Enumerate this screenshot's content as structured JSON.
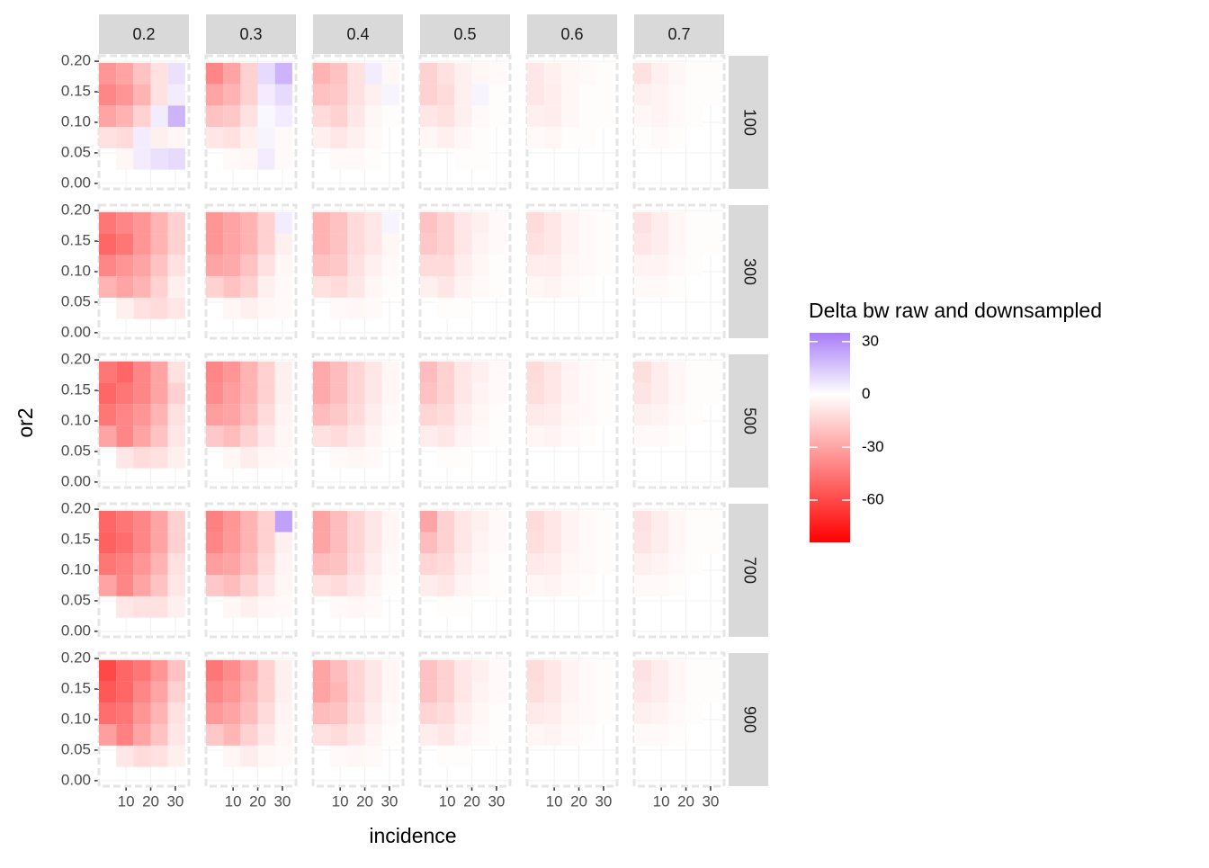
{
  "chart_data": {
    "type": "heatmap",
    "x_label": "incidence",
    "y_label": "or2",
    "legend_title": "Delta bw raw and downsampled",
    "columns": [
      "0.2",
      "0.3",
      "0.4",
      "0.5",
      "0.6",
      "0.7"
    ],
    "rows": [
      "100",
      "300",
      "500",
      "700",
      "900"
    ],
    "xlim": [
      -1,
      35.5
    ],
    "ylim": [
      -0.009,
      0.209
    ],
    "xticks": [
      10,
      20,
      30
    ],
    "yticks": [
      {
        "value": 0,
        "label": "0.00"
      },
      {
        "value": 0.05,
        "label": "0.05"
      },
      {
        "value": 0.1,
        "label": "0.10"
      },
      {
        "value": 0.15,
        "label": "0.15"
      },
      {
        "value": 0.2,
        "label": "0.20"
      }
    ],
    "x": [
      2.5,
      9.5,
      16.5,
      23.5,
      30.5
    ],
    "y": [
      0.04,
      0.075,
      0.11,
      0.145,
      0.18
    ],
    "zlim": [
      -84,
      35
    ],
    "low_color": "#ff0000",
    "mid_color": "#ffffff",
    "high_color": "#a77cf7",
    "legend_ticks": [
      30,
      0,
      -30,
      -60
    ],
    "panels": [
      [
        [
          [
            null,
            -3,
            5,
            8,
            10
          ],
          [
            -10,
            -12,
            5,
            -5,
            -3
          ],
          [
            -30,
            -25,
            -15,
            5,
            20
          ],
          [
            -40,
            -35,
            -25,
            -10,
            5
          ],
          [
            -35,
            -30,
            -20,
            -10,
            8
          ]
        ],
        [
          [
            null,
            -2,
            -3,
            5,
            -2
          ],
          [
            -8,
            -10,
            -5,
            3,
            -2
          ],
          [
            -20,
            -18,
            -10,
            2,
            5
          ],
          [
            -30,
            -25,
            -15,
            5,
            10
          ],
          [
            -40,
            -30,
            -15,
            10,
            20
          ]
        ],
        [
          [
            null,
            -2,
            -2,
            -1,
            null
          ],
          [
            -5,
            -8,
            -5,
            -2,
            null
          ],
          [
            -12,
            -15,
            -8,
            -3,
            -1
          ],
          [
            -20,
            -18,
            -10,
            -5,
            3
          ],
          [
            -25,
            -20,
            -10,
            5,
            -3
          ]
        ],
        [
          [
            null,
            null,
            -1,
            -1,
            null
          ],
          [
            -3,
            -5,
            -3,
            -1,
            null
          ],
          [
            -8,
            -10,
            -5,
            -2,
            -1
          ],
          [
            -15,
            -12,
            -5,
            3,
            -1
          ],
          [
            -15,
            -10,
            -5,
            -3,
            -2
          ]
        ],
        [
          [
            null,
            null,
            null,
            null,
            null
          ],
          [
            -2,
            -3,
            -1,
            -1,
            null
          ],
          [
            -5,
            -6,
            -3,
            -1,
            -1
          ],
          [
            -8,
            -6,
            -3,
            -1,
            -1
          ],
          [
            -8,
            -5,
            -3,
            -2,
            -1
          ]
        ],
        [
          [
            null,
            null,
            null,
            null,
            null
          ],
          [
            -1,
            -2,
            -1,
            null,
            null
          ],
          [
            -3,
            -4,
            -2,
            -1,
            null
          ],
          [
            -5,
            -4,
            -2,
            -1,
            -1
          ],
          [
            -10,
            -5,
            -3,
            -1,
            -1
          ]
        ]
      ],
      [
        [
          [
            null,
            -5,
            -10,
            -12,
            -8
          ],
          [
            -25,
            -30,
            -25,
            -15,
            -5
          ],
          [
            -40,
            -35,
            -30,
            -20,
            -10
          ],
          [
            -50,
            -45,
            -35,
            -25,
            -15
          ],
          [
            -45,
            -40,
            -35,
            -25,
            -15
          ]
        ],
        [
          [
            null,
            -3,
            -5,
            -3,
            -2
          ],
          [
            -15,
            -20,
            -15,
            -5,
            -2
          ],
          [
            -30,
            -28,
            -20,
            -10,
            -3
          ],
          [
            -35,
            -30,
            -25,
            -15,
            -5
          ],
          [
            -35,
            -30,
            -25,
            -15,
            5
          ]
        ],
        [
          [
            null,
            -2,
            -3,
            -2,
            null
          ],
          [
            -10,
            -12,
            -8,
            -3,
            -1
          ],
          [
            -20,
            -18,
            -10,
            -5,
            -2
          ],
          [
            -25,
            -20,
            -12,
            -8,
            -3
          ],
          [
            -25,
            -20,
            -12,
            -8,
            3
          ]
        ],
        [
          [
            null,
            -1,
            -1,
            null,
            null
          ],
          [
            -5,
            -8,
            -4,
            -2,
            -1
          ],
          [
            -12,
            -12,
            -6,
            -3,
            -1
          ],
          [
            -18,
            -15,
            -8,
            -4,
            -2
          ],
          [
            -20,
            -15,
            -8,
            -5,
            -2
          ]
        ],
        [
          [
            null,
            null,
            null,
            null,
            null
          ],
          [
            -3,
            -4,
            -2,
            -1,
            null
          ],
          [
            -6,
            -6,
            -3,
            -2,
            -1
          ],
          [
            -10,
            -8,
            -4,
            -2,
            -1
          ],
          [
            -12,
            -8,
            -4,
            -2,
            -1
          ]
        ],
        [
          [
            null,
            null,
            null,
            null,
            null
          ],
          [
            -2,
            -2,
            -1,
            null,
            null
          ],
          [
            -4,
            -4,
            -2,
            -1,
            null
          ],
          [
            -8,
            -6,
            -3,
            -1,
            -1
          ],
          [
            -10,
            -6,
            -3,
            -1,
            -1
          ]
        ]
      ],
      [
        [
          [
            null,
            -8,
            -12,
            -10,
            -5
          ],
          [
            -30,
            -40,
            -30,
            -20,
            -8
          ],
          [
            -45,
            -40,
            -35,
            -25,
            -10
          ],
          [
            -50,
            -45,
            -40,
            -30,
            -15
          ],
          [
            -45,
            -50,
            -40,
            -30,
            -10
          ]
        ],
        [
          [
            null,
            -3,
            -6,
            -3,
            -2
          ],
          [
            -18,
            -22,
            -15,
            -8,
            -3
          ],
          [
            -32,
            -30,
            -22,
            -12,
            -4
          ],
          [
            -38,
            -32,
            -25,
            -15,
            -5
          ],
          [
            -40,
            -35,
            -25,
            -15,
            -5
          ]
        ],
        [
          [
            null,
            -2,
            -3,
            -2,
            null
          ],
          [
            -10,
            -12,
            -8,
            -4,
            -1
          ],
          [
            -22,
            -18,
            -12,
            -6,
            -2
          ],
          [
            -28,
            -22,
            -14,
            -8,
            -3
          ],
          [
            -28,
            -22,
            -14,
            -8,
            -3
          ]
        ],
        [
          [
            null,
            -1,
            -1,
            null,
            null
          ],
          [
            -6,
            -8,
            -4,
            -2,
            -1
          ],
          [
            -14,
            -12,
            -6,
            -3,
            -1
          ],
          [
            -20,
            -15,
            -8,
            -4,
            -2
          ],
          [
            -22,
            -15,
            -8,
            -5,
            -2
          ]
        ],
        [
          [
            null,
            null,
            null,
            null,
            null
          ],
          [
            -3,
            -4,
            -2,
            -1,
            null
          ],
          [
            -7,
            -6,
            -3,
            -2,
            -1
          ],
          [
            -11,
            -8,
            -4,
            -2,
            -1
          ],
          [
            -12,
            -8,
            -4,
            -2,
            -1
          ]
        ],
        [
          [
            null,
            null,
            null,
            null,
            null
          ],
          [
            -2,
            -2,
            -1,
            null,
            null
          ],
          [
            -5,
            -4,
            -2,
            -1,
            null
          ],
          [
            -9,
            -6,
            -3,
            -1,
            -1
          ],
          [
            -11,
            -6,
            -3,
            -1,
            -1
          ]
        ]
      ],
      [
        [
          [
            null,
            -8,
            -10,
            -10,
            -5
          ],
          [
            -30,
            -40,
            -30,
            -20,
            -8
          ],
          [
            -45,
            -42,
            -35,
            -25,
            -10
          ],
          [
            -52,
            -48,
            -40,
            -30,
            -15
          ],
          [
            -50,
            -45,
            -40,
            -30,
            -15
          ]
        ],
        [
          [
            null,
            -3,
            -5,
            -3,
            -2
          ],
          [
            -18,
            -22,
            -15,
            -8,
            -3
          ],
          [
            -32,
            -30,
            -22,
            -12,
            -4
          ],
          [
            -40,
            -34,
            -25,
            -15,
            -5
          ],
          [
            -42,
            -35,
            -25,
            -15,
            25
          ]
        ],
        [
          [
            null,
            -2,
            -3,
            -2,
            null
          ],
          [
            -10,
            -12,
            -8,
            -4,
            -1
          ],
          [
            -22,
            -20,
            -12,
            -6,
            -2
          ],
          [
            -30,
            -22,
            -14,
            -8,
            -3
          ],
          [
            -30,
            -22,
            -14,
            -8,
            -3
          ]
        ],
        [
          [
            null,
            -1,
            -1,
            null,
            null
          ],
          [
            -6,
            -8,
            -4,
            -2,
            -1
          ],
          [
            -14,
            -12,
            -6,
            -3,
            -1
          ],
          [
            -22,
            -15,
            -8,
            -4,
            -2
          ],
          [
            -30,
            -15,
            -8,
            -5,
            -2
          ]
        ],
        [
          [
            null,
            null,
            null,
            null,
            null
          ],
          [
            -3,
            -4,
            -2,
            -1,
            null
          ],
          [
            -7,
            -6,
            -3,
            -2,
            -1
          ],
          [
            -11,
            -8,
            -4,
            -2,
            -1
          ],
          [
            -12,
            -8,
            -4,
            -2,
            -1
          ]
        ],
        [
          [
            null,
            null,
            null,
            null,
            null
          ],
          [
            -2,
            -2,
            -1,
            null,
            null
          ],
          [
            -5,
            -4,
            -2,
            -1,
            null
          ],
          [
            -9,
            -6,
            -3,
            -1,
            -1
          ],
          [
            -10,
            -6,
            -3,
            -1,
            -1
          ]
        ]
      ],
      [
        [
          [
            null,
            -8,
            -12,
            -10,
            -5
          ],
          [
            -32,
            -42,
            -30,
            -20,
            -8
          ],
          [
            -48,
            -45,
            -35,
            -25,
            -10
          ],
          [
            -55,
            -50,
            -40,
            -30,
            -15
          ],
          [
            -60,
            -50,
            -45,
            -35,
            -20
          ]
        ],
        [
          [
            null,
            -3,
            -6,
            -3,
            -2
          ],
          [
            -18,
            -24,
            -15,
            -8,
            -3
          ],
          [
            -34,
            -30,
            -22,
            -12,
            -4
          ],
          [
            -40,
            -35,
            -25,
            -15,
            -5
          ],
          [
            -45,
            -38,
            -28,
            -15,
            -5
          ]
        ],
        [
          [
            null,
            -2,
            -3,
            -2,
            null
          ],
          [
            -10,
            -12,
            -8,
            -4,
            -1
          ],
          [
            -22,
            -20,
            -12,
            -6,
            -2
          ],
          [
            -30,
            -24,
            -14,
            -8,
            -3
          ],
          [
            -30,
            -22,
            -14,
            -8,
            -3
          ]
        ],
        [
          [
            null,
            -1,
            -1,
            null,
            null
          ],
          [
            -6,
            -8,
            -4,
            -2,
            -1
          ],
          [
            -14,
            -12,
            -6,
            -3,
            -1
          ],
          [
            -20,
            -15,
            -8,
            -4,
            -2
          ],
          [
            -20,
            -15,
            -8,
            -5,
            -2
          ]
        ],
        [
          [
            null,
            null,
            null,
            null,
            null
          ],
          [
            -3,
            -4,
            -2,
            -1,
            null
          ],
          [
            -7,
            -6,
            -3,
            -2,
            -1
          ],
          [
            -11,
            -8,
            -4,
            -2,
            -1
          ],
          [
            -12,
            -8,
            -4,
            -2,
            -1
          ]
        ],
        [
          [
            null,
            null,
            null,
            null,
            null
          ],
          [
            -2,
            -2,
            -1,
            null,
            null
          ],
          [
            -5,
            -4,
            -2,
            -1,
            null
          ],
          [
            -8,
            -6,
            -3,
            -1,
            -1
          ],
          [
            -10,
            -6,
            -3,
            -1,
            -1
          ]
        ]
      ]
    ]
  }
}
